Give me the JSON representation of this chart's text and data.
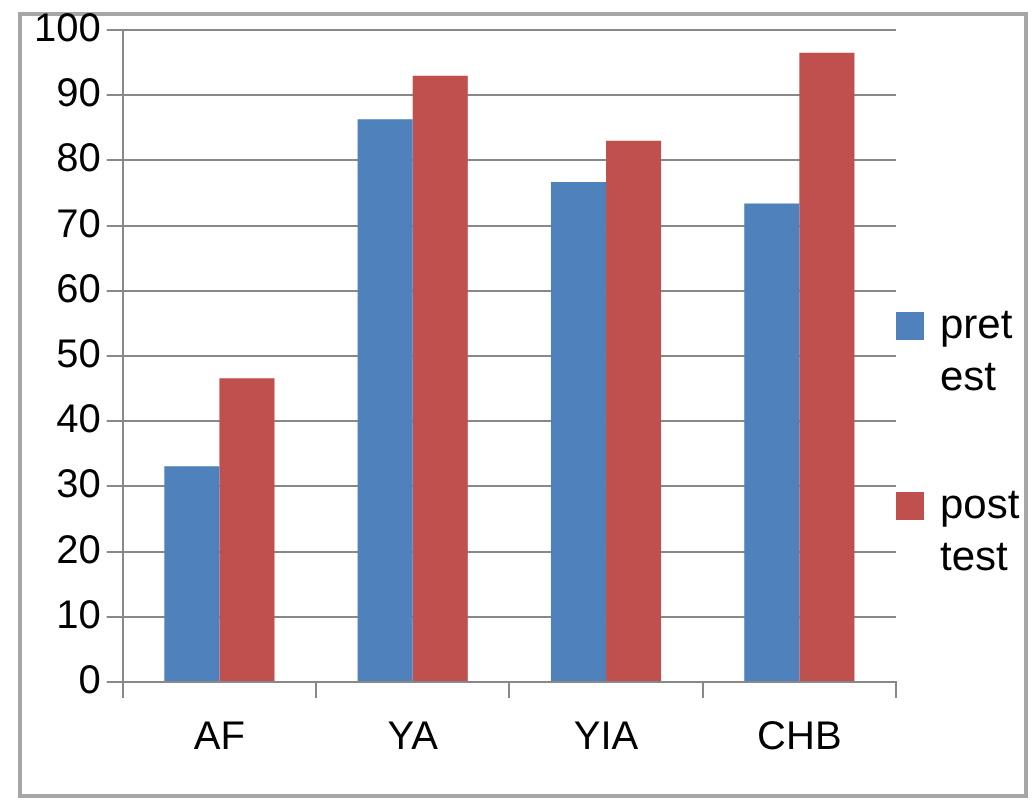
{
  "chart_data": {
    "type": "bar",
    "categories": [
      "AF",
      "YA",
      "YIA",
      "CHB"
    ],
    "series": [
      {
        "name": "pretest",
        "color": "#4f81bd",
        "values": [
          33.1,
          86.3,
          76.7,
          73.4
        ]
      },
      {
        "name": "post test",
        "color": "#c0504d",
        "values": [
          46.6,
          93.0,
          83.0,
          96.5
        ]
      }
    ],
    "ylim": [
      0,
      100
    ],
    "yticks": [
      0,
      10,
      20,
      30,
      40,
      50,
      60,
      70,
      80,
      90,
      100
    ],
    "grid": "y",
    "legend": "right"
  }
}
